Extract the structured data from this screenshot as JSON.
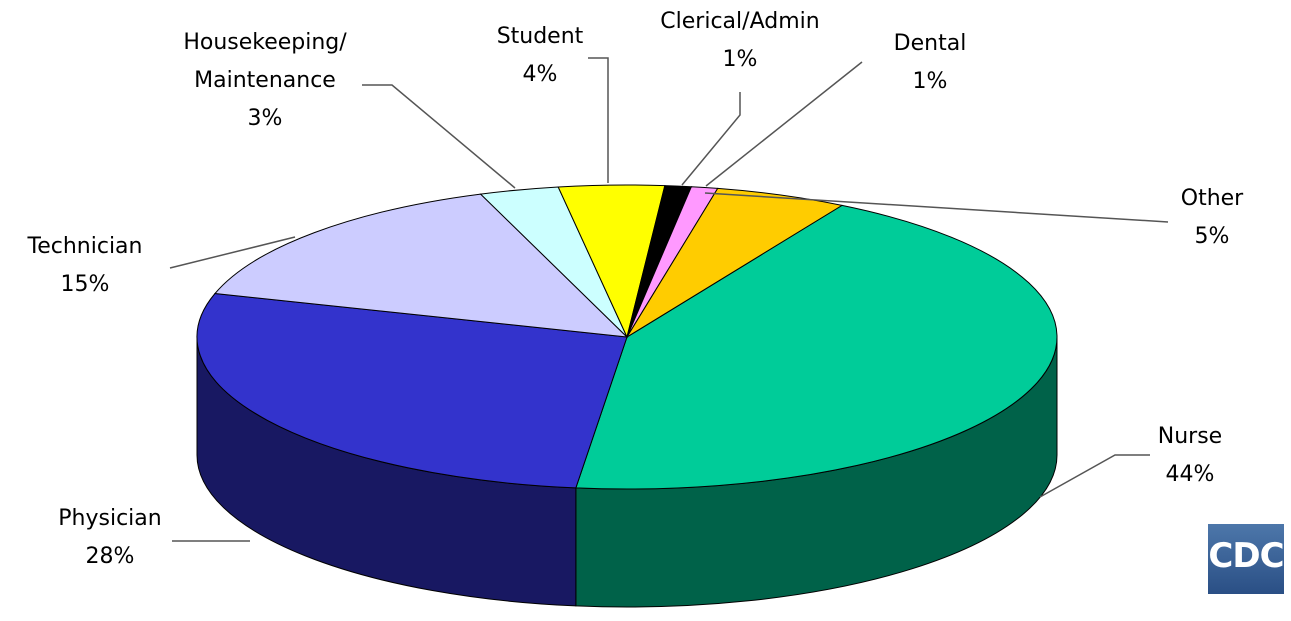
{
  "chart_data": {
    "type": "pie3d",
    "categories": [
      "Nurse",
      "Physician",
      "Technician",
      "Housekeeping/ Maintenance",
      "Student",
      "Clerical/Admin",
      "Dental",
      "Other"
    ],
    "values": [
      44,
      28,
      15,
      3,
      4,
      1,
      1,
      5
    ],
    "value_labels": [
      "44%",
      "28%",
      "15%",
      "3%",
      "4%",
      "1%",
      "1%",
      "5%"
    ],
    "colors": [
      "#00cc99",
      "#3333cc",
      "#ccccff",
      "#ccffff",
      "#ffff00",
      "#000000",
      "#ff99ff",
      "#ffcc00"
    ],
    "logo": "CDC"
  }
}
